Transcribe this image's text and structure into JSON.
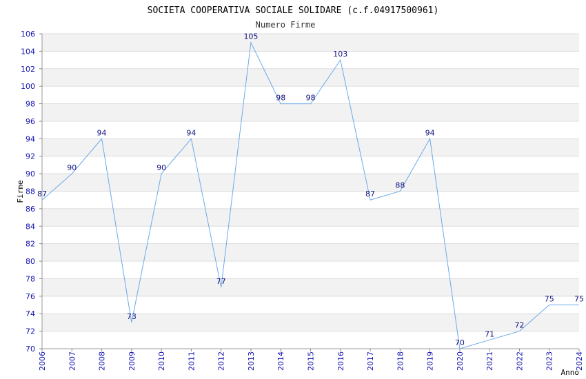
{
  "chart_data": {
    "type": "line",
    "title": "SOCIETA COOPERATIVA SOCIALE SOLIDARE (c.f.04917500961)",
    "subtitle": "Numero Firme",
    "xlabel": "Anno",
    "ylabel": "Firme",
    "x": [
      "2006",
      "2007",
      "2008",
      "2009",
      "2010",
      "2011",
      "2012",
      "2013",
      "2014",
      "2015",
      "2016",
      "2017",
      "2018",
      "2019",
      "2020",
      "2021",
      "2022",
      "2023",
      "2024"
    ],
    "values": [
      87,
      90,
      94,
      73,
      90,
      94,
      77,
      105,
      98,
      98,
      103,
      87,
      88,
      94,
      70,
      71,
      72,
      75,
      75
    ],
    "ylim": [
      70,
      106
    ],
    "yticks": [
      70,
      72,
      74,
      76,
      78,
      80,
      82,
      84,
      86,
      88,
      90,
      92,
      94,
      96,
      98,
      100,
      102,
      104,
      106
    ],
    "grid": true,
    "colors": {
      "line": "#6aa9e9",
      "tick_text": "#1010b0",
      "data_label": "#101080",
      "band": "#f2f2f2",
      "grid": "#dcdcdc"
    }
  }
}
